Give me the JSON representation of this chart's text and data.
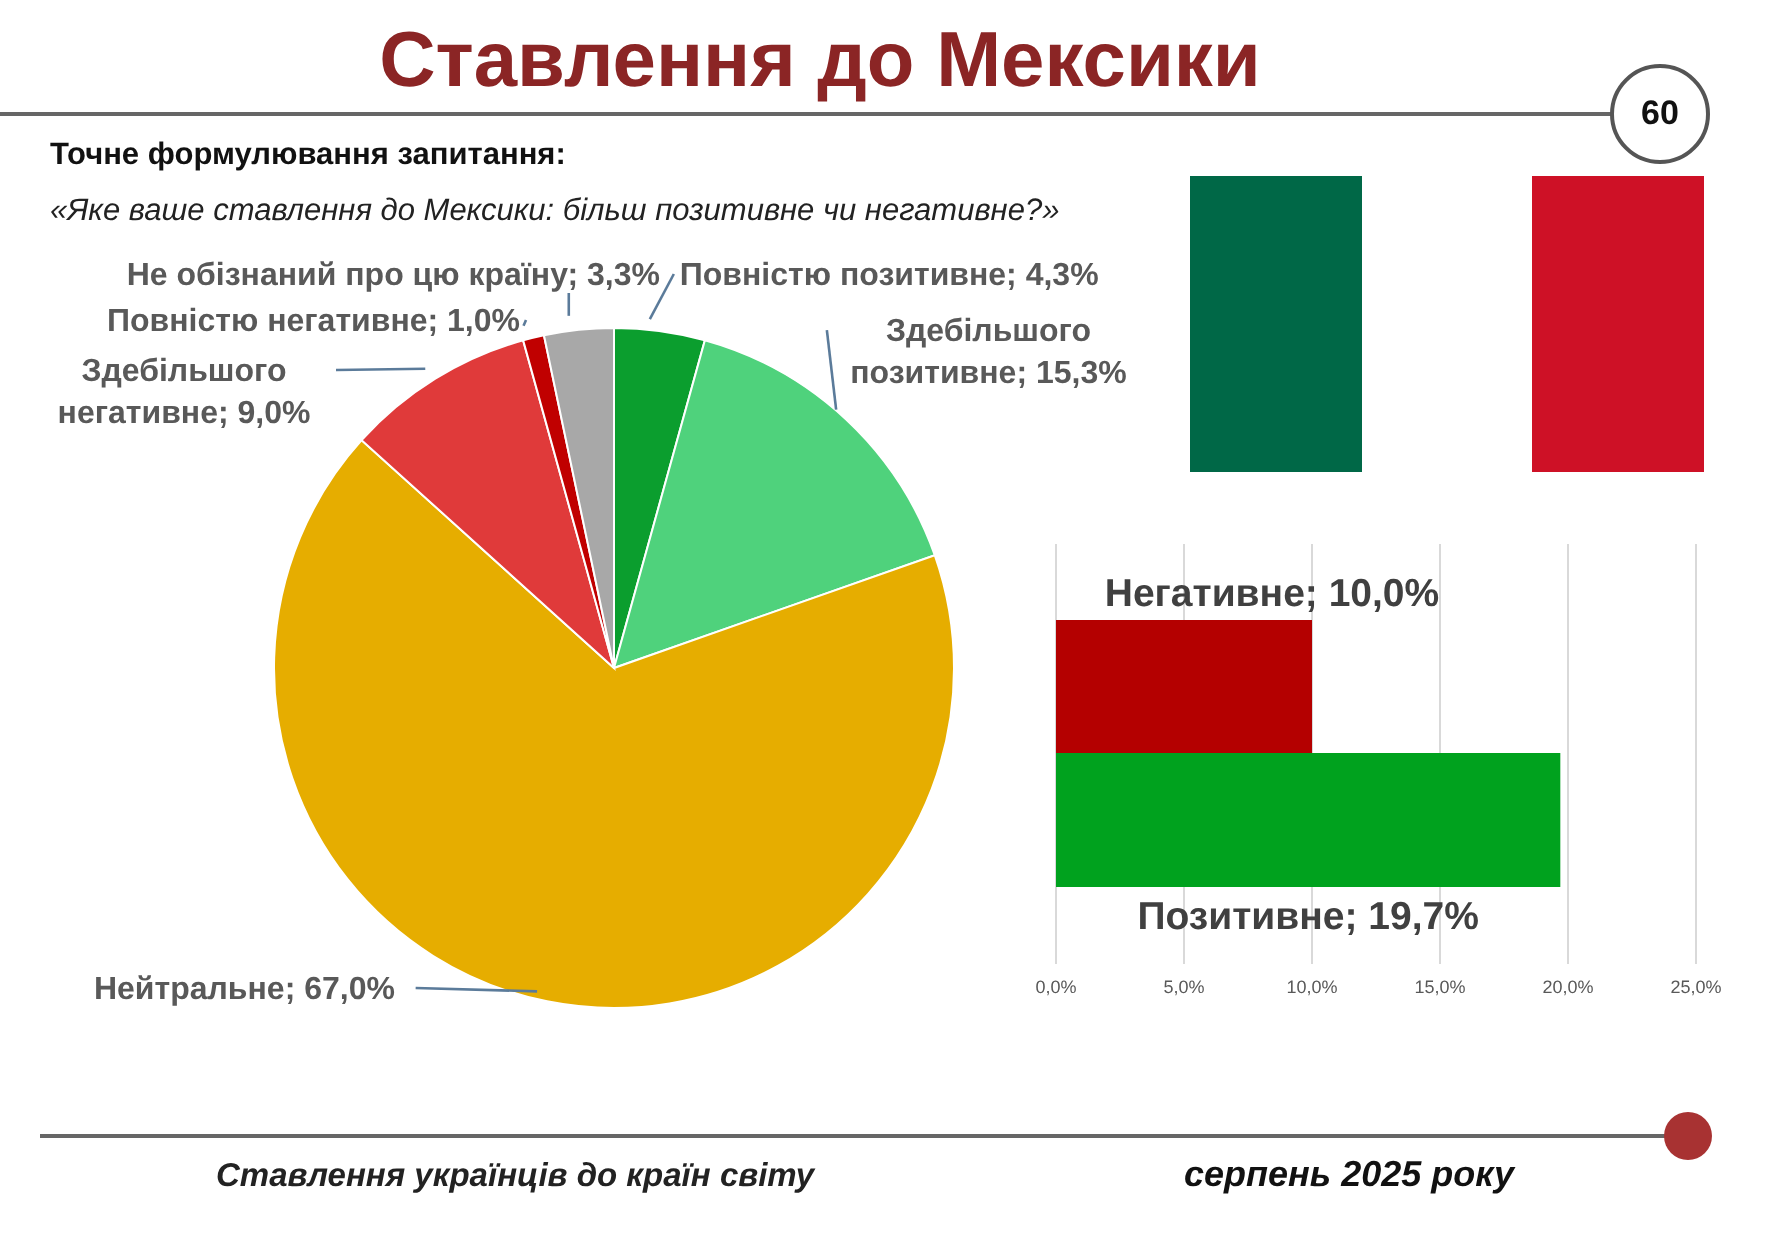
{
  "chart_data": [
    {
      "type": "pie",
      "title": "Ставлення до Мексики",
      "subtitle": "Точне формулювання запитання:",
      "annotations": [
        "«Яке ваше ставлення до Мексики: більш позитивне чи негативне?»",
        "60",
        "Ставлення українців до країн світу",
        "серпень 2025 року"
      ],
      "categories": [
        "Повністю позитивне",
        "Здебільшого позитивне",
        "Нейтральне",
        "Здебільшого негативне",
        "Повністю негативне",
        "Не обізнаний про цю країну"
      ],
      "values": [
        4.3,
        15.3,
        67.0,
        9.0,
        1.0,
        3.3
      ],
      "value_labels": [
        "4,3%",
        "15,3%",
        "67,0%",
        "9,0%",
        "1,0%",
        "3,3%"
      ],
      "colors": [
        "#0b9e2e",
        "#4fd27c",
        "#e6ad00",
        "#e03a3a",
        "#c00000",
        "#a8a8a8"
      ]
    },
    {
      "type": "bar",
      "orientation": "horizontal",
      "categories": [
        null,
        null
      ],
      "values": [
        10.0,
        19.7
      ],
      "value_labels": [
        "Негативне; 10,0%",
        "Позитивне; 19,7%"
      ],
      "colors": [
        "#b40000",
        "#00a21e"
      ],
      "xlim": [
        0,
        25
      ],
      "xticks": [
        {
          "value": 0,
          "label": "0,0%"
        },
        {
          "value": 5,
          "label": "5,0%"
        },
        {
          "value": 10,
          "label": "10,0%"
        },
        {
          "value": 15,
          "label": "15,0%"
        },
        {
          "value": 20,
          "label": "20,0%"
        },
        {
          "value": 25,
          "label": "25,0%"
        }
      ],
      "grid": "x",
      "tick_labels": "x"
    }
  ]
}
